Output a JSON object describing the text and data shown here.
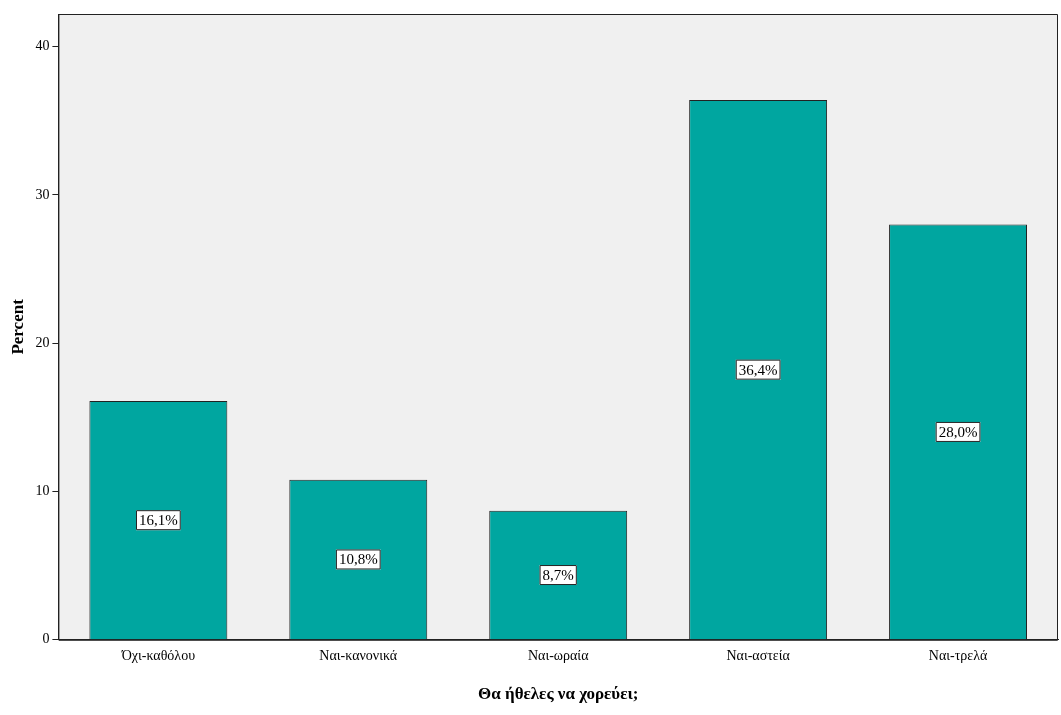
{
  "chart_data": {
    "type": "bar",
    "xlabel": "Θα ήθελες να χορεύει;",
    "ylabel": "Percent",
    "categories": [
      "Όχι-καθόλου",
      "Ναι-κανονικά",
      "Ναι-ωραία",
      "Ναι-αστεία",
      "Ναι-τρελά"
    ],
    "values": [
      16.1,
      10.8,
      8.7,
      36.4,
      28.0
    ],
    "value_labels": [
      "16,1%",
      "10,8%",
      "8,7%",
      "36,4%",
      "28,0%"
    ],
    "color": "#00a6a0",
    "ylim": [
      0,
      42.2
    ],
    "yticks": [
      0,
      10,
      20,
      30,
      40
    ],
    "grid": false,
    "legend": false
  }
}
